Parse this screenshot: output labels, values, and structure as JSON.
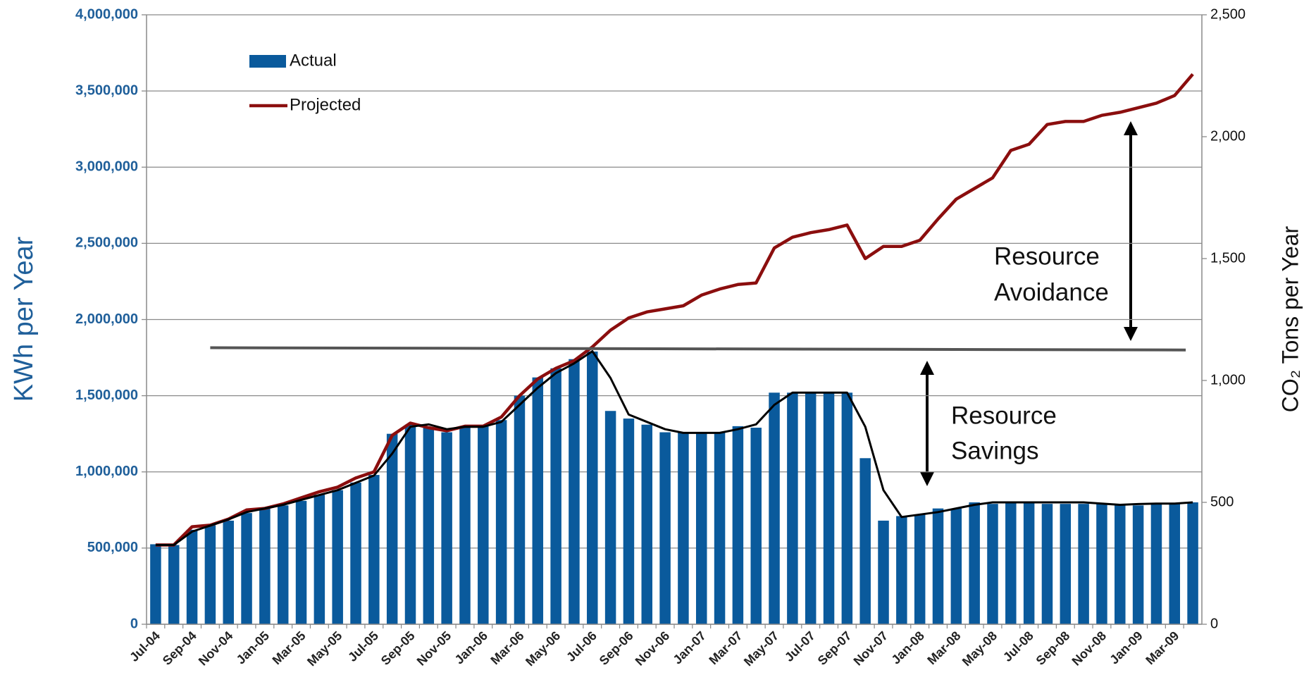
{
  "chart_data": {
    "type": "bar",
    "y_label": "KWh per Year",
    "y2_label": "CO₂ Tons per Year",
    "categories": [
      "Jul-04",
      null,
      "Sep-04",
      null,
      "Nov-04",
      null,
      "Jan-05",
      null,
      "Mar-05",
      null,
      "May-05",
      null,
      "Jul-05",
      null,
      "Sep-05",
      null,
      "Nov-05",
      null,
      "Jan-06",
      null,
      "Mar-06",
      null,
      "May-06",
      null,
      "Jul-06",
      null,
      "Sep-06",
      null,
      "Nov-06",
      null,
      "Jan-07",
      null,
      "Mar-07",
      null,
      "May-07",
      null,
      "Jul-07",
      null,
      "Sep-07",
      null,
      "Nov-07",
      null,
      "Jan-08",
      null,
      "Mar-08",
      null,
      "May-08",
      null,
      "Jul-08",
      null,
      "Sep-08",
      null,
      "Nov-08",
      null,
      "Jan-09",
      null,
      "Mar-09",
      null
    ],
    "series": [
      {
        "name": "Actual",
        "type": "bar",
        "color": "#0a5a9c",
        "values": [
          525000,
          520000,
          620000,
          650000,
          680000,
          730000,
          760000,
          780000,
          810000,
          850000,
          880000,
          930000,
          980000,
          1250000,
          1310000,
          1290000,
          1260000,
          1290000,
          1300000,
          1340000,
          1500000,
          1620000,
          1680000,
          1740000,
          1790000,
          1400000,
          1350000,
          1310000,
          1260000,
          1260000,
          1260000,
          1260000,
          1300000,
          1290000,
          1520000,
          1520000,
          1520000,
          1520000,
          1520000,
          1090000,
          680000,
          710000,
          720000,
          760000,
          760000,
          800000,
          790000,
          800000,
          800000,
          790000,
          790000,
          790000,
          790000,
          780000,
          780000,
          790000,
          790000,
          800000
        ]
      },
      {
        "name": "Projected",
        "type": "line",
        "color": "#8b0e0e",
        "values": [
          520000,
          520000,
          640000,
          650000,
          690000,
          750000,
          760000,
          790000,
          830000,
          870000,
          900000,
          960000,
          1000000,
          1240000,
          1320000,
          1290000,
          1270000,
          1300000,
          1300000,
          1360000,
          1500000,
          1610000,
          1680000,
          1730000,
          1820000,
          1930000,
          2010000,
          2050000,
          2070000,
          2090000,
          2160000,
          2200000,
          2230000,
          2240000,
          2470000,
          2540000,
          2570000,
          2590000,
          2620000,
          2400000,
          2480000,
          2480000,
          2520000,
          2660000,
          2790000,
          2860000,
          2930000,
          3110000,
          3150000,
          3280000,
          3300000,
          3300000,
          3340000,
          3360000,
          3390000,
          3420000,
          3470000,
          3610000
        ]
      },
      {
        "type": "line",
        "axis": "y2",
        "color": "#000000",
        "values": [
          325,
          325,
          380,
          405,
          430,
          460,
          475,
          490,
          510,
          530,
          550,
          580,
          610,
          700,
          810,
          820,
          800,
          810,
          810,
          830,
          900,
          970,
          1030,
          1070,
          1120,
          1010,
          860,
          830,
          800,
          785,
          785,
          785,
          800,
          820,
          900,
          950,
          950,
          950,
          950,
          810,
          550,
          440,
          450,
          460,
          475,
          490,
          500,
          500,
          500,
          500,
          500,
          500,
          495,
          490,
          493,
          495,
          495,
          500
        ]
      }
    ],
    "reference_line": {
      "color": "#555555",
      "values": [
        1815000,
        1800000
      ]
    },
    "annotations": [
      {
        "lines": [
          "Resource",
          "Avoidance"
        ]
      },
      {
        "lines": [
          "Resource",
          "Savings"
        ]
      }
    ],
    "ylim": [
      0,
      4000000
    ],
    "yticks": [
      0,
      {
        "value": 500000,
        "label": "500,000"
      },
      {
        "value": 1000000,
        "label": "1,000,000"
      },
      {
        "value": 1500000,
        "label": "1,500,000"
      },
      {
        "value": 2000000,
        "label": "2,000,000"
      },
      {
        "value": 2500000,
        "label": "2,500,000"
      },
      {
        "value": 3000000,
        "label": "3,000,000"
      },
      {
        "value": 3500000,
        "label": "3,500,000"
      },
      {
        "value": 4000000,
        "label": "4,000,000"
      }
    ],
    "y2lim": [
      0,
      2500
    ],
    "y2ticks": [
      0,
      500,
      {
        "value": 1000,
        "label": "1,000"
      },
      {
        "value": 1500,
        "label": "1,500"
      },
      {
        "value": 2000,
        "label": "2,000"
      },
      {
        "value": 2500,
        "label": "2,500"
      }
    ],
    "grid": true,
    "legend": "upper left"
  }
}
